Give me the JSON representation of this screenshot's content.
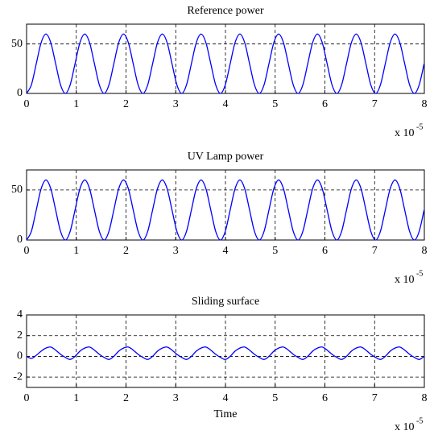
{
  "chart_data": [
    {
      "type": "line",
      "title": "Reference power",
      "color": "#0000ff",
      "grid": true,
      "xlim": [
        0,
        8
      ],
      "xticks": [
        0,
        1,
        2,
        3,
        4,
        5,
        6,
        7,
        8
      ],
      "ylim": [
        0,
        70
      ],
      "yticks": [
        0,
        50
      ],
      "annotation": {
        "text": "x 10",
        "superscript": "-5"
      },
      "x": [
        0,
        0.0975,
        0.195,
        0.2925,
        0.39,
        0.4875,
        0.585,
        0.6825,
        0.78,
        0.8775,
        0.975,
        1.0725,
        1.17,
        1.2675,
        1.365,
        1.4625,
        1.56,
        1.6575,
        1.755,
        1.8525,
        1.95,
        2.0475,
        2.145,
        2.2425,
        2.34,
        2.4375,
        2.535,
        2.6325,
        2.73,
        2.8275,
        2.925,
        3.0225,
        3.12,
        3.2175,
        3.315,
        3.4125,
        3.51,
        3.6075,
        3.705,
        3.8025,
        3.9,
        3.9975,
        4.095,
        4.1925,
        4.29,
        4.3875,
        4.485,
        4.5825,
        4.68,
        4.7775,
        4.875,
        4.9725,
        5.07,
        5.1675,
        5.265,
        5.3625,
        5.46,
        5.5575,
        5.655,
        5.7525,
        5.85,
        5.9475,
        6.045,
        6.1425,
        6.24,
        6.3375,
        6.435,
        6.5325,
        6.63,
        6.7275,
        6.825,
        6.9225,
        7.02,
        7.1175,
        7.215,
        7.3125,
        7.41,
        7.5075,
        7.605,
        7.7025,
        7.8,
        7.8975,
        7.995
      ],
      "values": [
        0,
        8.8,
        30,
        51.2,
        60,
        51.2,
        30,
        8.8,
        0,
        8.8,
        30,
        51.2,
        60,
        51.2,
        30,
        8.8,
        0,
        8.8,
        30,
        51.2,
        60,
        51.2,
        30,
        8.8,
        0,
        8.8,
        30,
        51.2,
        60,
        51.2,
        30,
        8.8,
        0,
        8.8,
        30,
        51.2,
        60,
        51.2,
        30,
        8.8,
        0,
        8.8,
        30,
        51.2,
        60,
        51.2,
        30,
        8.8,
        0,
        8.8,
        30,
        51.2,
        60,
        51.2,
        30,
        8.8,
        0,
        8.8,
        30,
        51.2,
        60,
        51.2,
        30,
        8.8,
        0,
        8.8,
        30,
        51.2,
        60,
        51.2,
        30,
        8.8,
        0,
        8.8,
        30,
        51.2,
        60,
        51.2,
        30,
        8.8,
        0,
        8.8,
        30
      ]
    },
    {
      "type": "line",
      "title": "UV Lamp power",
      "color": "#0000ff",
      "grid": true,
      "xlim": [
        0,
        8
      ],
      "xticks": [
        0,
        1,
        2,
        3,
        4,
        5,
        6,
        7,
        8
      ],
      "ylim": [
        0,
        70
      ],
      "yticks": [
        0,
        50
      ],
      "annotation": {
        "text": "x 10",
        "superscript": "-5"
      },
      "x": [
        0,
        0.0975,
        0.195,
        0.2925,
        0.39,
        0.4875,
        0.585,
        0.6825,
        0.78,
        0.8775,
        0.975,
        1.0725,
        1.17,
        1.2675,
        1.365,
        1.4625,
        1.56,
        1.6575,
        1.755,
        1.8525,
        1.95,
        2.0475,
        2.145,
        2.2425,
        2.34,
        2.4375,
        2.535,
        2.6325,
        2.73,
        2.8275,
        2.925,
        3.0225,
        3.12,
        3.2175,
        3.315,
        3.4125,
        3.51,
        3.6075,
        3.705,
        3.8025,
        3.9,
        3.9975,
        4.095,
        4.1925,
        4.29,
        4.3875,
        4.485,
        4.5825,
        4.68,
        4.7775,
        4.875,
        4.9725,
        5.07,
        5.1675,
        5.265,
        5.3625,
        5.46,
        5.5575,
        5.655,
        5.7525,
        5.85,
        5.9475,
        6.045,
        6.1425,
        6.24,
        6.3375,
        6.435,
        6.5325,
        6.63,
        6.7275,
        6.825,
        6.9225,
        7.02,
        7.1175,
        7.215,
        7.3125,
        7.41,
        7.5075,
        7.605,
        7.7025,
        7.8,
        7.8975,
        7.995
      ],
      "values": [
        0,
        8.8,
        30,
        51.2,
        60,
        51.2,
        30,
        8.8,
        0,
        8.8,
        30,
        51.2,
        60,
        51.2,
        30,
        8.8,
        0,
        8.8,
        30,
        51.2,
        60,
        51.2,
        30,
        8.8,
        0,
        8.8,
        30,
        51.2,
        60,
        51.2,
        30,
        8.8,
        0,
        8.8,
        30,
        51.2,
        60,
        51.2,
        30,
        8.8,
        0,
        8.8,
        30,
        51.2,
        60,
        51.2,
        30,
        8.8,
        0,
        8.8,
        30,
        51.2,
        60,
        51.2,
        30,
        8.8,
        0,
        8.8,
        30,
        51.2,
        60,
        51.2,
        30,
        8.8,
        0,
        8.8,
        30,
        51.2,
        60,
        51.2,
        30,
        8.8,
        0,
        8.8,
        30,
        51.2,
        60,
        51.2,
        30,
        8.8,
        0,
        8.8,
        30
      ]
    },
    {
      "type": "line",
      "title": "Sliding surface",
      "xlabel": "Time",
      "color": "#0000ff",
      "grid": true,
      "xlim": [
        0,
        8
      ],
      "xticks": [
        0,
        1,
        2,
        3,
        4,
        5,
        6,
        7,
        8
      ],
      "ylim": [
        -3,
        4
      ],
      "yticks": [
        -2,
        0,
        2,
        4
      ],
      "annotation": {
        "text": "x 10",
        "superscript": "-5"
      },
      "x": [
        0,
        0.0975,
        0.195,
        0.2925,
        0.39,
        0.4875,
        0.585,
        0.6825,
        0.78,
        0.8775,
        0.975,
        1.0725,
        1.17,
        1.2675,
        1.365,
        1.4625,
        1.56,
        1.6575,
        1.755,
        1.8525,
        1.95,
        2.0475,
        2.145,
        2.2425,
        2.34,
        2.4375,
        2.535,
        2.6325,
        2.73,
        2.8275,
        2.925,
        3.0225,
        3.12,
        3.2175,
        3.315,
        3.4125,
        3.51,
        3.6075,
        3.705,
        3.8025,
        3.9,
        3.9975,
        4.095,
        4.1925,
        4.29,
        4.3875,
        4.485,
        4.5825,
        4.68,
        4.7775,
        4.875,
        4.9725,
        5.07,
        5.1675,
        5.265,
        5.3625,
        5.46,
        5.5575,
        5.655,
        5.7525,
        5.85,
        5.9475,
        6.045,
        6.1425,
        6.24,
        6.3375,
        6.435,
        6.5325,
        6.63,
        6.7275,
        6.825,
        6.9225,
        7.02,
        7.1175,
        7.215,
        7.3125,
        7.41,
        7.5075,
        7.605,
        7.7025,
        7.8,
        7.8975,
        7.995
      ],
      "values": [
        0,
        -0.2,
        0.1,
        0.5,
        0.8,
        0.9,
        0.6,
        0.2,
        -0.1,
        -0.3,
        0.0,
        0.5,
        0.8,
        0.9,
        0.6,
        0.2,
        -0.1,
        -0.3,
        0.0,
        0.5,
        0.8,
        0.9,
        0.6,
        0.2,
        -0.1,
        -0.3,
        0.0,
        0.5,
        0.8,
        0.9,
        0.6,
        0.2,
        -0.1,
        -0.3,
        0.0,
        0.5,
        0.8,
        0.9,
        0.6,
        0.2,
        -0.1,
        -0.3,
        0.0,
        0.5,
        0.8,
        0.9,
        0.6,
        0.2,
        -0.1,
        -0.3,
        0.0,
        0.5,
        0.8,
        0.9,
        0.6,
        0.2,
        -0.1,
        -0.3,
        0.0,
        0.5,
        0.8,
        0.9,
        0.6,
        0.2,
        -0.1,
        -0.3,
        0.0,
        0.5,
        0.8,
        0.9,
        0.6,
        0.2,
        -0.1,
        -0.3,
        0.0,
        0.5,
        0.8,
        0.9,
        0.6,
        0.2,
        -0.1,
        -0.3,
        0.0
      ]
    }
  ]
}
